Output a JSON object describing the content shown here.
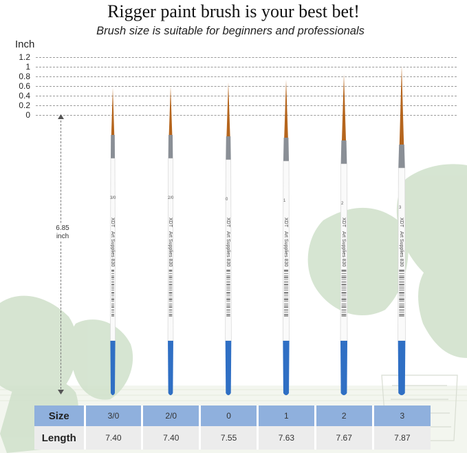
{
  "title": "Rigger paint brush is your best bet!",
  "subtitle": "Brush size is suitable for beginners and professionals",
  "scale": {
    "unit": "Inch",
    "ticks": [
      "1.2",
      "1",
      "0.8",
      "0.6",
      "0.4",
      "0.2",
      "0"
    ]
  },
  "dimension": {
    "value": "6.85",
    "unit": "inch"
  },
  "brushes": [
    {
      "size_mark": "3/0",
      "brand": "XDT",
      "text": "Art Supplies 830"
    },
    {
      "size_mark": "2/0",
      "brand": "XDT",
      "text": "Art Supplies 830"
    },
    {
      "size_mark": "0",
      "brand": "XDT",
      "text": "Art Supplies 830"
    },
    {
      "size_mark": "1",
      "brand": "XDT",
      "text": "Art Supplies 830"
    },
    {
      "size_mark": "2",
      "brand": "XDT",
      "text": "Art Supplies 830"
    },
    {
      "size_mark": "3",
      "brand": "XDT",
      "text": "Art Supplies 830"
    }
  ],
  "table": {
    "size_header": "Size",
    "length_header": "Length",
    "sizes": [
      "3/0",
      "2/0",
      "0",
      "1",
      "2",
      "3"
    ],
    "lengths": [
      "7.40",
      "7.40",
      "7.55",
      "7.63",
      "7.67",
      "7.87"
    ]
  },
  "colors": {
    "handle": "#fafafa",
    "ferrule": "#8a8f96",
    "bristle": "#b5651d",
    "grip": "#2f6fc4",
    "leaf": "#c9dcc4",
    "header_row": "#8fb0dd",
    "length_row": "#ececec"
  }
}
